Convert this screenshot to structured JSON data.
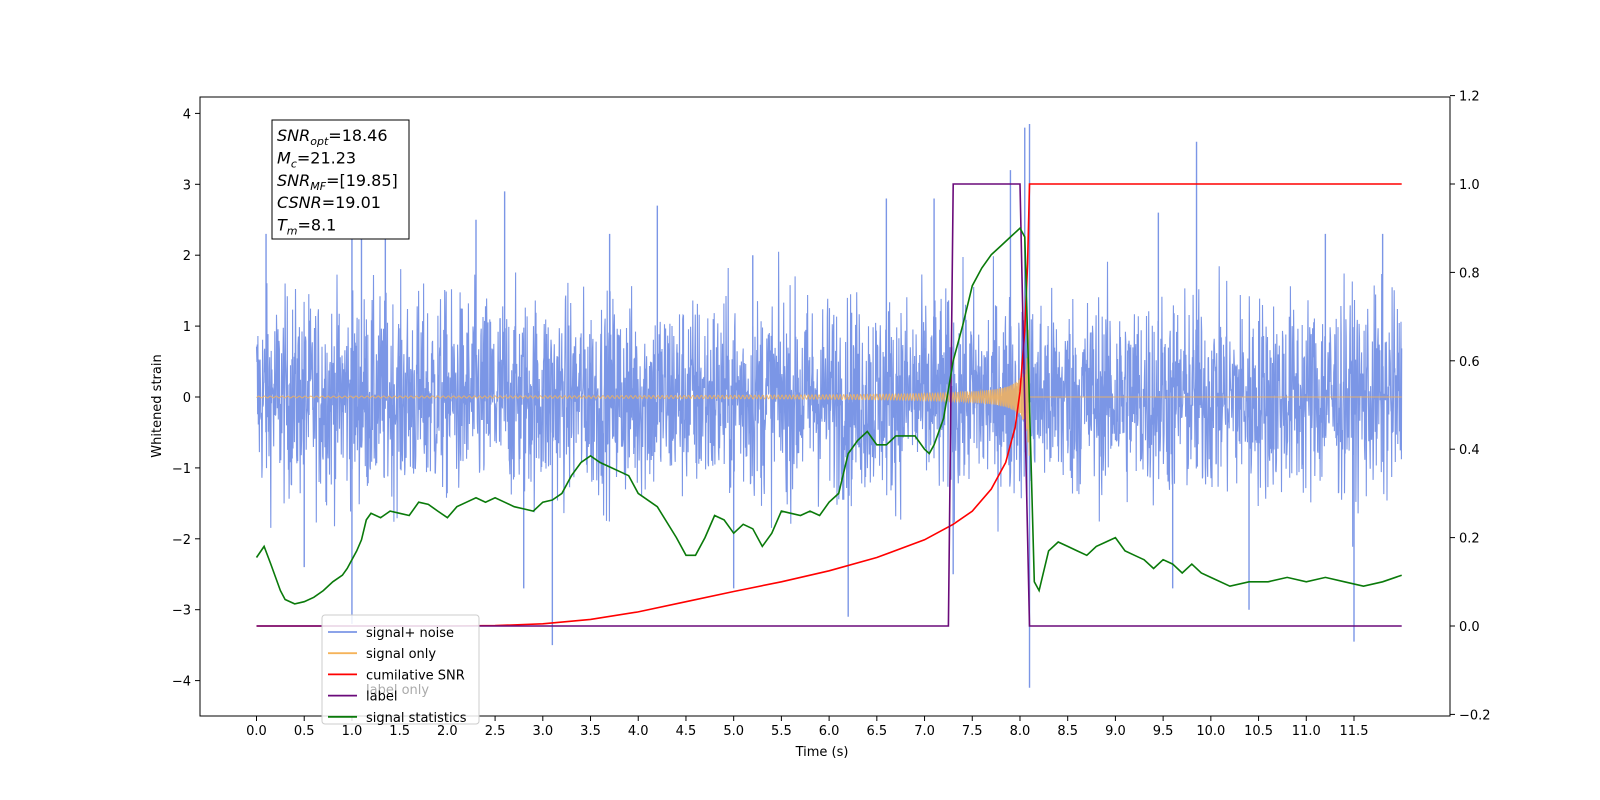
{
  "chart_data": {
    "type": "line",
    "xlabel": "Time (s)",
    "ylabel_left": "Whitened strain",
    "ylabel_right": "",
    "xlim": [
      -0.6,
      12.57
    ],
    "ylim_left": [
      -4.5,
      4.25
    ],
    "ylim_right": [
      -0.2,
      1.2
    ],
    "x_ticks": [
      0.0,
      0.5,
      1.0,
      1.5,
      2.0,
      2.5,
      3.0,
      3.5,
      4.0,
      4.5,
      5.0,
      5.5,
      6.0,
      6.5,
      7.0,
      7.5,
      8.0,
      8.5,
      9.0,
      9.5,
      10.0,
      10.5,
      11.0,
      11.5
    ],
    "x_tick_labels": [
      "0.0",
      "0.5",
      "1.0",
      "1.5",
      "2.0",
      "2.5",
      "3.0",
      "3.5",
      "4.0",
      "4.5",
      "5.0",
      "5.5",
      "6.0",
      "6.5",
      "7.0",
      "7.5",
      "8.0",
      "8.5",
      "9.0",
      "9.5",
      "10.0",
      "10.5",
      "11.0",
      "11.5"
    ],
    "y_left_ticks": [
      4,
      3,
      2,
      1,
      0,
      -1,
      -2,
      -3,
      -4
    ],
    "y_left_tick_labels": [
      "4",
      "3",
      "2",
      "1",
      "0",
      "−1",
      "−2",
      "−3",
      "−4"
    ],
    "y_right_ticks": [
      1.2,
      1.0,
      0.8,
      0.6,
      0.4,
      0.2,
      0.0,
      -0.2
    ],
    "y_right_tick_labels": [
      "1.2",
      "1.0",
      "0.8",
      "0.6",
      "0.4",
      "0.2",
      "0.0",
      "−0.2"
    ],
    "grid": false,
    "legend_position": "bottom-left",
    "legend": [
      "signal+ noise",
      "signal only",
      "cumilative SNR",
      "label",
      "signal statistics"
    ],
    "legend_overlap_text": "label only",
    "annotation": {
      "lines": [
        {
          "base": "SNR",
          "sub": "opt",
          "rest": "=18.46"
        },
        {
          "base": "M",
          "sub": "c",
          "rest": "=21.23"
        },
        {
          "base": "SNR",
          "sub": "MF",
          "rest": "=[19.85]"
        },
        {
          "base": "CSNR",
          "sub": "",
          "rest": "=19.01"
        },
        {
          "base": "T",
          "sub": "m",
          "rest": "=8.1"
        }
      ]
    },
    "colors": {
      "noise": "#7b96e6",
      "signal": "#f5b35a",
      "cumulative_snr": "#ff0000",
      "label": "#6a0a7a",
      "statistics": "#0a7a0a"
    },
    "series": [
      {
        "name": "signal+ noise",
        "axis": "left",
        "description_values": {
          "x_start": 0.0,
          "x_end": 12.0,
          "typical_range": [
            -1.6,
            1.6
          ],
          "max": 3.8,
          "min": -4.1
        },
        "spikes": [
          {
            "x": 0.1,
            "y": 2.3
          },
          {
            "x": 1.0,
            "y": 2.5
          },
          {
            "x": 1.1,
            "y": 2.3
          },
          {
            "x": 1.35,
            "y": 2.4
          },
          {
            "x": 2.3,
            "y": 2.5
          },
          {
            "x": 2.6,
            "y": 2.9
          },
          {
            "x": 3.7,
            "y": 2.3
          },
          {
            "x": 4.2,
            "y": 2.7
          },
          {
            "x": 5.2,
            "y": 2.0
          },
          {
            "x": 6.6,
            "y": 2.8
          },
          {
            "x": 7.1,
            "y": 2.8
          },
          {
            "x": 7.9,
            "y": 3.2
          },
          {
            "x": 8.05,
            "y": 3.8
          },
          {
            "x": 8.1,
            "y": 3.85
          },
          {
            "x": 9.45,
            "y": 2.6
          },
          {
            "x": 9.85,
            "y": 3.6
          },
          {
            "x": 11.2,
            "y": 2.3
          },
          {
            "x": 11.8,
            "y": 2.3
          },
          {
            "x": 0.5,
            "y": -2.4
          },
          {
            "x": 1.0,
            "y": -3.2
          },
          {
            "x": 3.1,
            "y": -3.5
          },
          {
            "x": 6.2,
            "y": -3.1
          },
          {
            "x": 7.3,
            "y": -2.5
          },
          {
            "x": 8.1,
            "y": -4.1
          },
          {
            "x": 9.6,
            "y": -2.7
          },
          {
            "x": 10.4,
            "y": -3.0
          },
          {
            "x": 11.5,
            "y": -3.45
          },
          {
            "x": 2.8,
            "y": -2.7
          },
          {
            "x": 5.0,
            "y": -2.7
          }
        ]
      },
      {
        "name": "signal only",
        "axis": "left",
        "description_values": {
          "x_start": 0.0,
          "x_end": 12.0,
          "merger_time": 8.1,
          "peak_amplitude": 1.6
        }
      },
      {
        "name": "cumilative SNR",
        "axis": "right",
        "x": [
          0.0,
          2.0,
          2.5,
          3.0,
          3.5,
          4.0,
          4.5,
          5.0,
          5.5,
          6.0,
          6.5,
          7.0,
          7.3,
          7.5,
          7.7,
          7.85,
          7.95,
          8.0,
          8.05,
          8.08,
          8.1,
          12.0
        ],
        "values": [
          0.0,
          0.0,
          0.001,
          0.005,
          0.015,
          0.032,
          0.055,
          0.078,
          0.1,
          0.125,
          0.155,
          0.195,
          0.23,
          0.26,
          0.31,
          0.37,
          0.45,
          0.53,
          0.67,
          0.82,
          1.0,
          1.0
        ]
      },
      {
        "name": "label",
        "axis": "right",
        "x": [
          0.0,
          7.25,
          7.3,
          8.0,
          8.1,
          12.0
        ],
        "values": [
          0.0,
          0.0,
          1.0,
          1.0,
          0.0,
          0.0
        ]
      },
      {
        "name": "signal statistics",
        "axis": "right",
        "x": [
          0.0,
          0.08,
          0.15,
          0.25,
          0.3,
          0.4,
          0.5,
          0.6,
          0.7,
          0.8,
          0.9,
          0.95,
          1.0,
          1.05,
          1.1,
          1.15,
          1.2,
          1.3,
          1.4,
          1.5,
          1.6,
          1.7,
          1.8,
          1.9,
          2.0,
          2.1,
          2.2,
          2.3,
          2.4,
          2.5,
          2.6,
          2.7,
          2.8,
          2.9,
          3.0,
          3.1,
          3.2,
          3.3,
          3.4,
          3.5,
          3.6,
          3.7,
          3.8,
          3.9,
          4.0,
          4.2,
          4.4,
          4.5,
          4.6,
          4.7,
          4.8,
          4.9,
          5.0,
          5.1,
          5.2,
          5.3,
          5.4,
          5.5,
          5.6,
          5.7,
          5.8,
          5.9,
          6.0,
          6.1,
          6.2,
          6.3,
          6.4,
          6.5,
          6.6,
          6.7,
          6.8,
          6.9,
          7.0,
          7.05,
          7.1,
          7.15,
          7.2,
          7.3,
          7.4,
          7.5,
          7.6,
          7.7,
          7.8,
          7.9,
          8.0,
          8.05,
          8.1,
          8.15,
          8.2,
          8.3,
          8.4,
          8.5,
          8.6,
          8.7,
          8.8,
          8.9,
          9.0,
          9.1,
          9.2,
          9.3,
          9.4,
          9.5,
          9.6,
          9.7,
          9.8,
          9.9,
          10.0,
          10.2,
          10.4,
          10.6,
          10.8,
          11.0,
          11.2,
          11.4,
          11.6,
          11.8,
          12.0
        ],
        "values": [
          0.155,
          0.18,
          0.14,
          0.08,
          0.06,
          0.05,
          0.055,
          0.065,
          0.08,
          0.1,
          0.115,
          0.13,
          0.15,
          0.17,
          0.195,
          0.24,
          0.255,
          0.245,
          0.26,
          0.255,
          0.25,
          0.28,
          0.275,
          0.26,
          0.245,
          0.27,
          0.28,
          0.29,
          0.28,
          0.29,
          0.28,
          0.27,
          0.265,
          0.26,
          0.28,
          0.285,
          0.3,
          0.34,
          0.37,
          0.385,
          0.37,
          0.36,
          0.35,
          0.34,
          0.3,
          0.27,
          0.2,
          0.16,
          0.16,
          0.2,
          0.25,
          0.24,
          0.21,
          0.23,
          0.22,
          0.18,
          0.21,
          0.26,
          0.255,
          0.25,
          0.26,
          0.25,
          0.28,
          0.3,
          0.39,
          0.42,
          0.44,
          0.41,
          0.41,
          0.43,
          0.43,
          0.43,
          0.4,
          0.39,
          0.41,
          0.44,
          0.47,
          0.6,
          0.68,
          0.77,
          0.81,
          0.84,
          0.86,
          0.88,
          0.9,
          0.88,
          0.5,
          0.1,
          0.08,
          0.17,
          0.19,
          0.18,
          0.17,
          0.16,
          0.18,
          0.19,
          0.2,
          0.17,
          0.16,
          0.15,
          0.13,
          0.15,
          0.14,
          0.12,
          0.14,
          0.12,
          0.11,
          0.09,
          0.1,
          0.1,
          0.11,
          0.1,
          0.11,
          0.1,
          0.09,
          0.1,
          0.115
        ]
      }
    ]
  }
}
